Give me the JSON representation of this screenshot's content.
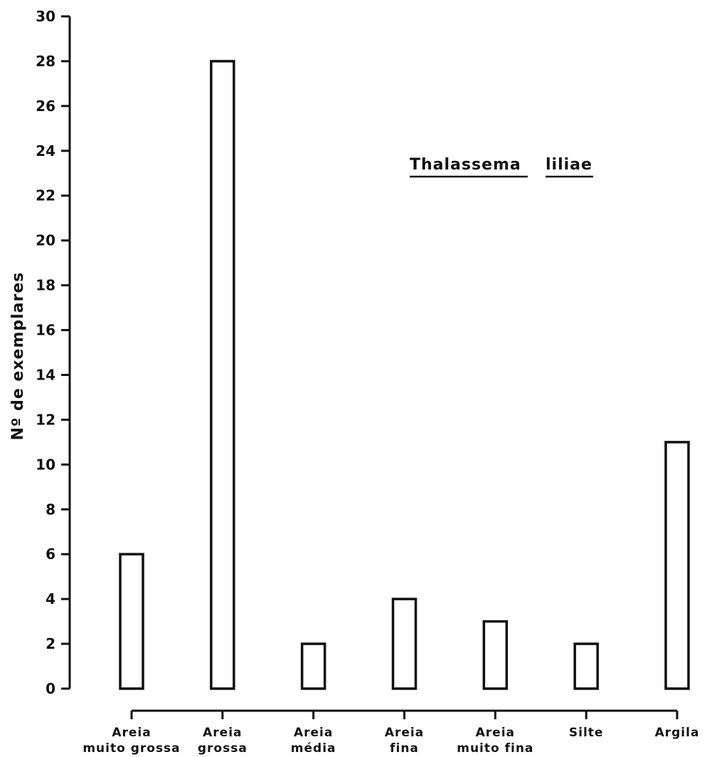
{
  "chart_data": {
    "type": "bar",
    "title_parts": [
      "Thalassema",
      "liliae"
    ],
    "ylabel": "Nº de exemplares",
    "xlabel": "",
    "ylim": [
      0,
      30
    ],
    "yticks": [
      0,
      2,
      4,
      6,
      8,
      10,
      12,
      14,
      16,
      18,
      20,
      22,
      24,
      26,
      28,
      30
    ],
    "categories": [
      [
        "Areia",
        "muito grossa"
      ],
      [
        "Areia",
        "grossa"
      ],
      [
        "Areia",
        "média"
      ],
      [
        "Areia",
        "fina"
      ],
      [
        "Areia",
        "muito fina"
      ],
      [
        "Silte"
      ],
      [
        "Argila"
      ]
    ],
    "values": [
      6,
      28,
      2,
      4,
      3,
      2,
      11
    ],
    "grid": false,
    "legend": "none"
  },
  "colors": {
    "ink": "#111111",
    "background": "#ffffff",
    "bar_fill": "#ffffff"
  }
}
